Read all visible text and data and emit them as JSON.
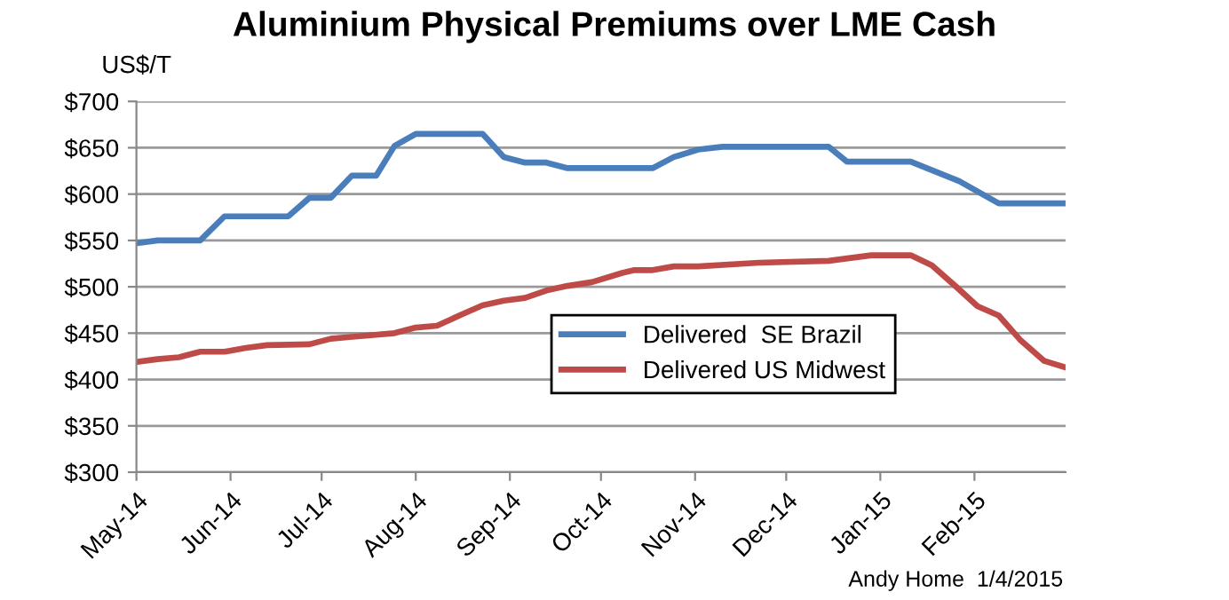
{
  "chart_data": {
    "type": "line",
    "title": "Aluminium Physical Premiums over LME Cash",
    "ylabel": "US$/T",
    "annotations": [
      "Andy Home  1/4/2015"
    ],
    "series": [
      {
        "name": "Delivered  SE Brazil",
        "color": "#4a7ebb",
        "x": [
          "2014-05-01",
          "2014-05-08",
          "2014-05-22",
          "2014-05-30",
          "2014-06-20",
          "2014-06-27",
          "2014-07-04",
          "2014-07-11",
          "2014-07-19",
          "2014-07-25",
          "2014-08-01",
          "2014-08-23",
          "2014-08-30",
          "2014-09-06",
          "2014-09-13",
          "2014-09-20",
          "2014-10-08",
          "2014-10-18",
          "2014-10-25",
          "2014-11-02",
          "2014-11-10",
          "2014-12-15",
          "2014-12-21",
          "2015-01-11",
          "2015-01-27",
          "2015-02-09",
          "2015-03-03"
        ],
        "values": [
          547,
          550,
          550,
          576,
          576,
          596,
          596,
          620,
          620,
          652,
          665,
          665,
          640,
          634,
          634,
          628,
          628,
          628,
          640,
          648,
          651,
          651,
          635,
          635,
          614,
          590,
          590
        ]
      },
      {
        "name": "Delivered US Midwest",
        "color": "#be4b48",
        "x": [
          "2014-05-01",
          "2014-05-08",
          "2014-05-15",
          "2014-05-22",
          "2014-05-30",
          "2014-06-06",
          "2014-06-13",
          "2014-06-27",
          "2014-07-04",
          "2014-07-11",
          "2014-07-25",
          "2014-08-01",
          "2014-08-08",
          "2014-08-16",
          "2014-08-23",
          "2014-08-30",
          "2014-09-06",
          "2014-09-13",
          "2014-09-20",
          "2014-09-28",
          "2014-10-08",
          "2014-10-12",
          "2014-10-18",
          "2014-10-25",
          "2014-11-02",
          "2014-11-22",
          "2014-12-15",
          "2014-12-29",
          "2015-01-11",
          "2015-01-18",
          "2015-01-26",
          "2015-02-02",
          "2015-02-09",
          "2015-02-16",
          "2015-02-24",
          "2015-03-03"
        ],
        "values": [
          419,
          422,
          424,
          430,
          430,
          434,
          437,
          438,
          444,
          446,
          450,
          456,
          458,
          470,
          480,
          485,
          488,
          496,
          501,
          505,
          515,
          518,
          518,
          522,
          522,
          526,
          528,
          534,
          534,
          523,
          500,
          479,
          469,
          443,
          420,
          413
        ]
      }
    ],
    "xlim": [
      "2014-05-01",
      "2015-03-03"
    ],
    "xticks": [
      {
        "value": "2014-05-01",
        "label": "May-14"
      },
      {
        "value": "2014-06-01",
        "label": "Jun-14"
      },
      {
        "value": "2014-07-01",
        "label": "Jul-14"
      },
      {
        "value": "2014-08-01",
        "label": "Aug-14"
      },
      {
        "value": "2014-09-01",
        "label": "Sep-14"
      },
      {
        "value": "2014-10-01",
        "label": "Oct-14"
      },
      {
        "value": "2014-11-01",
        "label": "Nov-14"
      },
      {
        "value": "2014-12-01",
        "label": "Dec-14"
      },
      {
        "value": "2015-01-01",
        "label": "Jan-15"
      },
      {
        "value": "2015-02-01",
        "label": "Feb-15"
      }
    ],
    "ylim": [
      300,
      700
    ],
    "yticks": [
      {
        "value": 300,
        "label": "$300"
      },
      {
        "value": 350,
        "label": "$350"
      },
      {
        "value": 400,
        "label": "$400"
      },
      {
        "value": 450,
        "label": "$450"
      },
      {
        "value": 500,
        "label": "$500"
      },
      {
        "value": 550,
        "label": "$550"
      },
      {
        "value": 600,
        "label": "$600"
      },
      {
        "value": 650,
        "label": "$650"
      },
      {
        "value": 700,
        "label": "$700"
      }
    ],
    "grid": "y",
    "legend": "bottom right",
    "marker": "none",
    "line_style": "solid"
  }
}
